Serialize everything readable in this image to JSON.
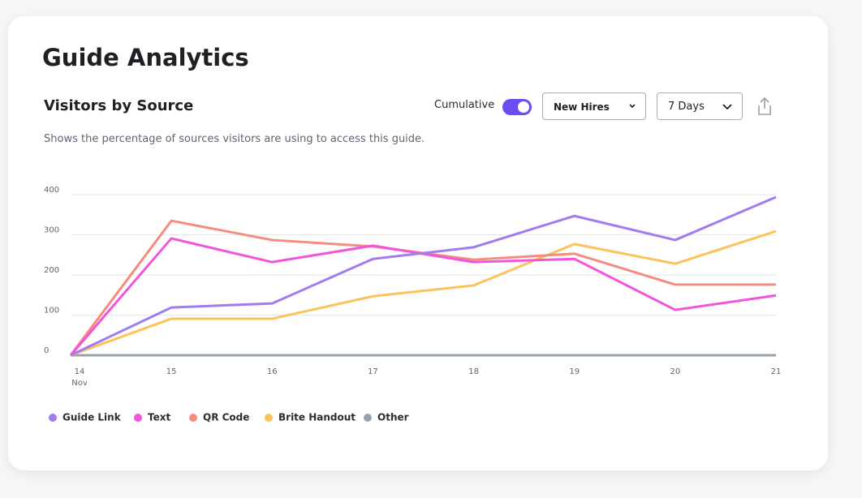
{
  "header": {
    "title": "Guide Analytics"
  },
  "controls": {
    "cumulative_label": "Cumulative",
    "cumulative_on": true,
    "group": "New Hires",
    "range": "7 Days"
  },
  "chart_data": {
    "type": "line",
    "title": "Visitors by Source",
    "subtitle": "Shows the percentage of sources visitors are using to access this guide.",
    "categories": [
      "14",
      "15",
      "16",
      "17",
      "18",
      "19",
      "20",
      "21"
    ],
    "month_label": "Nov",
    "ylim": [
      0,
      400
    ],
    "yticks": [
      0,
      100,
      200,
      300,
      400
    ],
    "grid": true,
    "series": [
      {
        "name": "Guide Link",
        "color": "#a07cf0",
        "values": [
          0,
          119,
          129,
          240,
          269,
          347,
          287,
          394
        ]
      },
      {
        "name": "Text",
        "color": "#f255dc",
        "values": [
          0,
          291,
          232,
          273,
          232,
          240,
          113,
          149
        ]
      },
      {
        "name": "QR Code",
        "color": "#f48c80",
        "values": [
          0,
          335,
          287,
          271,
          238,
          253,
          176,
          176
        ]
      },
      {
        "name": "Brite Handout",
        "color": "#fbc35a",
        "values": [
          0,
          91,
          91,
          147,
          174,
          277,
          228,
          309
        ]
      },
      {
        "name": "Other",
        "color": "#97a2ad",
        "values": [
          0,
          0,
          0,
          0,
          0,
          0,
          0,
          0
        ]
      }
    ]
  }
}
